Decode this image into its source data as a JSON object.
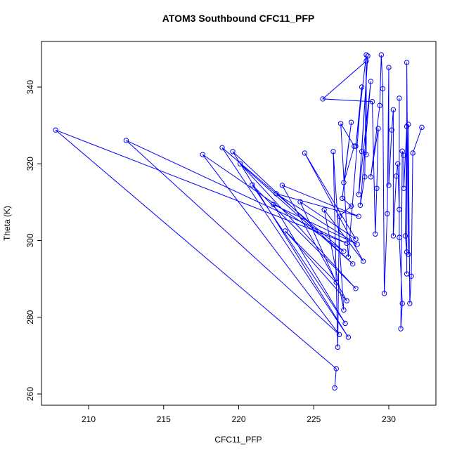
{
  "chart_data": {
    "type": "line",
    "title": "ATOM3 Southbound CFC11_PFP",
    "x_label": "CFC11_PFP",
    "y_label": "Theta (K)",
    "color": "#0000ff",
    "series": [
      {
        "name": "CFC11_PFP",
        "x": [
          226.4,
          226.5,
          207.8,
          227.2,
          212.5,
          226.7,
          217.6,
          227.0,
          218.9,
          227.3,
          219.6,
          227.6,
          220.1,
          227.8,
          220.9,
          227.1,
          222.3,
          227.9,
          222.5,
          228.0,
          222.9,
          227.2,
          223.1,
          226.5,
          224.1,
          227.8,
          224.4,
          228.3,
          225.7,
          227.0,
          226.3,
          226.6,
          226.7,
          227.5,
          226.9,
          227.5,
          227.0,
          227.7,
          226.8,
          227.3,
          228.2,
          227.8,
          228.5,
          228.5,
          228.2,
          228.6,
          228.0,
          228.8,
          228.1,
          228.4,
          228.5,
          225.6,
          228.9,
          229.1,
          229.2,
          229.3,
          228.8,
          229.4,
          229.5,
          229.6,
          229.7,
          229.9,
          230.0,
          230.0,
          230.2,
          230.3,
          230.3,
          230.5,
          230.6,
          230.7,
          230.7,
          230.7,
          230.9,
          230.8,
          230.9,
          231.0,
          231.0,
          231.2,
          231.1,
          231.2,
          231.2,
          231.2,
          231.3,
          231.3,
          231.4,
          231.5,
          231.6,
          232.2
        ],
        "values": [
          261.6,
          266.6,
          328.8,
          299.3,
          326.1,
          275.5,
          322.4,
          297.2,
          324.2,
          274.8,
          323.2,
          293.9,
          320.0,
          287.5,
          314.5,
          278.4,
          309.4,
          299.0,
          312.2,
          306.3,
          314.4,
          284.3,
          302.5,
          289.1,
          310.1,
          300.4,
          322.8,
          294.6,
          308.0,
          281.9,
          323.2,
          272.2,
          306.3,
          309.0,
          311.0,
          330.8,
          315.1,
          324.6,
          330.5,
          295.7,
          340.0,
          324.6,
          348.4,
          322.4,
          323.2,
          348.1,
          312.0,
          341.5,
          309.2,
          316.6,
          346.8,
          336.9,
          336.2,
          301.7,
          313.6,
          329.2,
          316.6,
          335.2,
          348.4,
          339.6,
          286.2,
          307.0,
          345.1,
          314.4,
          328.8,
          334.1,
          301.2,
          316.8,
          320.0,
          308.1,
          337.1,
          300.8,
          283.6,
          277.0,
          323.3,
          322.2,
          313.6,
          329.7,
          301.2,
          297.0,
          291.3,
          346.4,
          296.4,
          330.3,
          283.6,
          290.7,
          322.8,
          329.5
        ]
      }
    ],
    "xlim": [
      206.86,
      233.14
    ],
    "ylim": [
      257.07,
      351.9
    ],
    "xticks": [
      210,
      215,
      220,
      225,
      230
    ],
    "yticks": [
      260,
      280,
      300,
      320,
      340
    ]
  }
}
